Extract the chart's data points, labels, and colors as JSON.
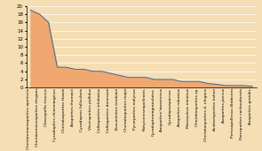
{
  "categories": [
    "Cheiratomonosporites aperturis",
    "Cheiratomonosporites elegans",
    "Classopollis trouvus",
    "Cycadopites chiasmarginus",
    "Cheiralasporites thamii",
    "Aasporites thomasii",
    "Cycadopres follicularis",
    "Vitreisporites pallidus",
    "Callasporites trilobatus",
    "Callasporites demissori",
    "Bucuminites tesdoani",
    "Cheiratasporites major",
    "Pycorporites malynus",
    "Platycorvisnapolleonis",
    "Cycadoptearagranulatus",
    "Aasporites lawrenceus",
    "Cycadopsasparvus",
    "Aasporites robustus",
    "Monosulcos minimus",
    "Cheiratasporites sp.",
    "Cheiratasporites d. elegans",
    "Androrisporites tisheri",
    "Aasporites porvus",
    "Perissopollenus dlatbcens",
    "Parceporites cachoudensts",
    "Aasporites grandis"
  ],
  "values": [
    19,
    18,
    16,
    5,
    5,
    4.5,
    4.5,
    4,
    4,
    3.5,
    3,
    2.5,
    2.5,
    2.5,
    2,
    2,
    2,
    1.5,
    1.5,
    1.5,
    1,
    0.8,
    0.5,
    0.5,
    0.5,
    0.3
  ],
  "ylim": [
    0,
    20
  ],
  "yticks": [
    0,
    2,
    4,
    6,
    8,
    10,
    12,
    14,
    16,
    18,
    20
  ],
  "line_color": "#3a6e9e",
  "fill_color": "#f0a870",
  "fill_alpha": 1.0,
  "background_color": "#f5deb3",
  "grid_color": "#ffffff",
  "label_fontsize": 3.2,
  "tick_fontsize": 4.0
}
